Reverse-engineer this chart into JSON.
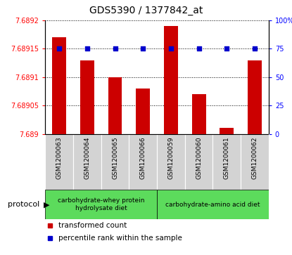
{
  "title": "GDS5390 / 1377842_at",
  "samples": [
    "GSM1200063",
    "GSM1200064",
    "GSM1200065",
    "GSM1200066",
    "GSM1200059",
    "GSM1200060",
    "GSM1200061",
    "GSM1200062"
  ],
  "red_values": [
    7.68917,
    7.68913,
    7.6891,
    7.68908,
    7.68919,
    7.68907,
    7.68901,
    7.68913
  ],
  "blue_values": [
    75,
    75,
    75,
    75,
    75,
    75,
    75,
    75
  ],
  "ylim_left": [
    7.689,
    7.6892
  ],
  "ylim_right": [
    0,
    100
  ],
  "yticks_left": [
    7.689,
    7.68905,
    7.6891,
    7.68915,
    7.6892
  ],
  "ytick_labels_left": [
    "7.689",
    "7.68905",
    "7.6891",
    "7.68915",
    "7.6892"
  ],
  "yticks_right": [
    0,
    25,
    50,
    75,
    100
  ],
  "ytick_labels_right": [
    "0",
    "25",
    "50",
    "75",
    "100%"
  ],
  "group1_label": "carbohydrate-whey protein\nhydrolysate diet",
  "group2_label": "carbohydrate-amino acid diet",
  "group_color": "#5cdb5c",
  "protocol_label": "protocol",
  "bar_color_red": "#cc0000",
  "dot_color_blue": "#0000cc",
  "bar_width": 0.5,
  "baseline": 7.689,
  "plot_bg_color": "#ffffff",
  "xtick_bg_color": "#d3d3d3",
  "legend_red": "transformed count",
  "legend_blue": "percentile rank within the sample",
  "title_fontsize": 10,
  "tick_fontsize": 7,
  "sample_fontsize": 6.5,
  "legend_fontsize": 7.5
}
